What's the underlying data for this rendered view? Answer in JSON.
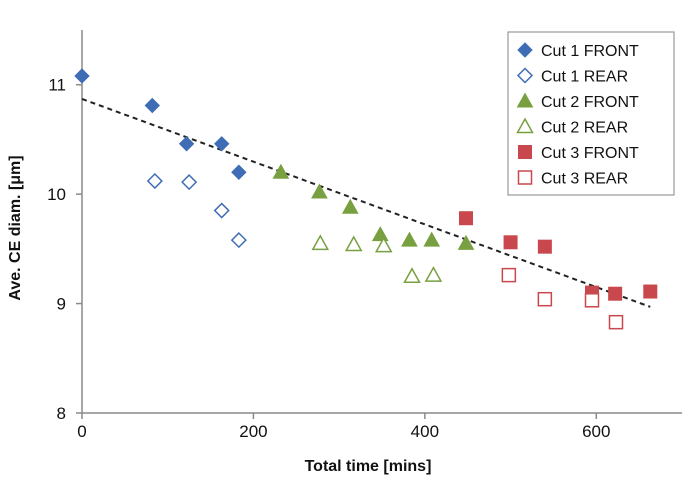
{
  "chart_data": {
    "type": "scatter",
    "xlabel": "Total time [mins]",
    "ylabel": "Ave. CE diam. [μm]",
    "xlim": [
      0,
      700
    ],
    "ylim": [
      8,
      11.5
    ],
    "x_ticks": [
      0,
      200,
      400,
      600
    ],
    "y_ticks": [
      8,
      9,
      10,
      11
    ],
    "grid": false,
    "legend_position": "top-right",
    "series": [
      {
        "name": "Cut 1 FRONT",
        "marker": "diamond-filled",
        "color": "#3f6db5",
        "x": [
          0,
          82,
          122,
          163,
          183
        ],
        "y": [
          11.08,
          10.81,
          10.46,
          10.46,
          10.2
        ]
      },
      {
        "name": "Cut 1 REAR",
        "marker": "diamond-open",
        "color": "#3f6db5",
        "x": [
          85,
          125,
          163,
          183
        ],
        "y": [
          10.12,
          10.11,
          9.85,
          9.58
        ]
      },
      {
        "name": "Cut 2 FRONT",
        "marker": "triangle-filled",
        "color": "#78a040",
        "x": [
          232,
          277,
          313,
          348,
          382,
          408,
          448
        ],
        "y": [
          10.2,
          10.02,
          9.88,
          9.63,
          9.58,
          9.58,
          9.55
        ]
      },
      {
        "name": "Cut 2 REAR",
        "marker": "triangle-open",
        "color": "#78a040",
        "x": [
          278,
          317,
          352,
          385,
          410
        ],
        "y": [
          9.55,
          9.54,
          9.53,
          9.25,
          9.26
        ]
      },
      {
        "name": "Cut 3 FRONT",
        "marker": "square-filled",
        "color": "#c8484d",
        "x": [
          448,
          500,
          540,
          595,
          622,
          663
        ],
        "y": [
          9.78,
          9.56,
          9.52,
          9.1,
          9.09,
          9.11
        ]
      },
      {
        "name": "Cut 3 REAR",
        "marker": "square-open",
        "color": "#c8484d",
        "x": [
          498,
          540,
          595,
          623
        ],
        "y": [
          9.26,
          9.04,
          9.03,
          8.83
        ]
      }
    ],
    "trendline": {
      "style": "dashed",
      "color": "#222222",
      "x": [
        0,
        663
      ],
      "y": [
        10.87,
        8.97
      ]
    }
  }
}
